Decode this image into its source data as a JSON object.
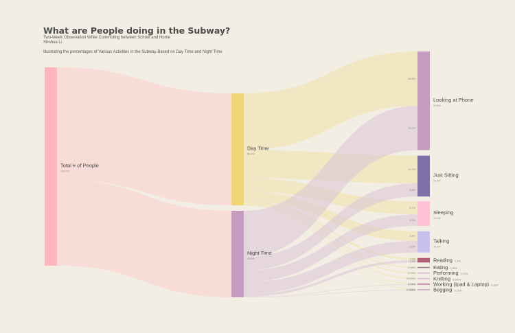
{
  "header": {
    "title": "What are People doing in the Subway?",
    "subtitle": "Two-Week Observation While Commuting between School and Home",
    "author": "Shuhua Li",
    "description": "Illustrating the percentages of Various Activities in the Subway Based on Day Time and Night Time"
  },
  "colors": {
    "background": "#f3eee4",
    "total": "#ffb6bd",
    "day": "#f0d673",
    "night": "#c59cc0",
    "looking": "#c59cc0",
    "sitting": "#8070a8",
    "sleeping": "#ffc0d6",
    "talking": "#c9c0ee",
    "reading": "#b06078"
  },
  "chart_data": {
    "type": "sankey",
    "title": "What are People doing in the Subway?",
    "nodes": [
      {
        "id": "total",
        "label": "Total # of People",
        "pct": "100.0%",
        "value": 100.0
      },
      {
        "id": "day",
        "label": "Day Time",
        "pct": "56.4%",
        "value": 56.4
      },
      {
        "id": "night",
        "label": "Night Time",
        "pct": "43.6%",
        "value": 43.6
      },
      {
        "id": "looking",
        "label": "Looking at Phone",
        "pct": "51.8%",
        "value": 51.8
      },
      {
        "id": "sitting",
        "label": "Just Sitting",
        "pct": "21.0%",
        "value": 21.0
      },
      {
        "id": "sleeping",
        "label": "Sleeping",
        "pct": "12.6%",
        "value": 12.6
      },
      {
        "id": "talking",
        "label": "Talking",
        "pct": "10.9%",
        "value": 10.9
      },
      {
        "id": "reading",
        "label": "Reading",
        "pct": "2.3%",
        "value": 2.3
      },
      {
        "id": "eating",
        "label": "Eating",
        "pct": "0.38%",
        "value": 0.38
      },
      {
        "id": "performing",
        "label": "Performing",
        "pct": "0.19%",
        "value": 0.19
      },
      {
        "id": "knitting",
        "label": "Knitting",
        "pct": "0.095%",
        "value": 0.095
      },
      {
        "id": "working",
        "label": "Working (Ipad & Laptop)",
        "pct": "0.38%",
        "value": 0.38
      },
      {
        "id": "begging",
        "label": "Begging",
        "pct": "0.19%",
        "value": 0.19
      }
    ],
    "links": [
      {
        "source": "total",
        "target": "day",
        "value": 56.4
      },
      {
        "source": "total",
        "target": "night",
        "value": 43.6
      },
      {
        "source": "day",
        "target": "looking",
        "value": 28.6,
        "pct": "28.6%"
      },
      {
        "source": "day",
        "target": "sitting",
        "value": 14.2,
        "pct": "14.2%"
      },
      {
        "source": "day",
        "target": "sleeping",
        "value": 6.7,
        "pct": "6.7%"
      },
      {
        "source": "day",
        "target": "talking",
        "value": 4.9,
        "pct": "4.9%"
      },
      {
        "source": "day",
        "target": "reading",
        "value": 1.0,
        "pct": "1.0%"
      },
      {
        "source": "day",
        "target": "eating",
        "value": 0.38,
        "pct": "0.38%"
      },
      {
        "source": "day",
        "target": "performing",
        "value": 0.19,
        "pct": "0.19%"
      },
      {
        "source": "day",
        "target": "knitting",
        "value": 0.095,
        "pct": "0.095%"
      },
      {
        "source": "day",
        "target": "working",
        "value": 0.19,
        "pct": "0.19%"
      },
      {
        "source": "day",
        "target": "begging",
        "value": 0.095,
        "pct": "0.095%"
      },
      {
        "source": "night",
        "target": "looking",
        "value": 23.2,
        "pct": "23.2%"
      },
      {
        "source": "night",
        "target": "sitting",
        "value": 6.8,
        "pct": "6.8%"
      },
      {
        "source": "night",
        "target": "sleeping",
        "value": 5.9,
        "pct": "5.9%"
      },
      {
        "source": "night",
        "target": "talking",
        "value": 6.0,
        "pct": "6.0%"
      },
      {
        "source": "night",
        "target": "reading",
        "value": 1.3,
        "pct": "1.3%"
      },
      {
        "source": "night",
        "target": "working",
        "value": 0.19,
        "pct": "0.19%"
      },
      {
        "source": "night",
        "target": "begging",
        "value": 0.095,
        "pct": "0.095%"
      }
    ]
  }
}
